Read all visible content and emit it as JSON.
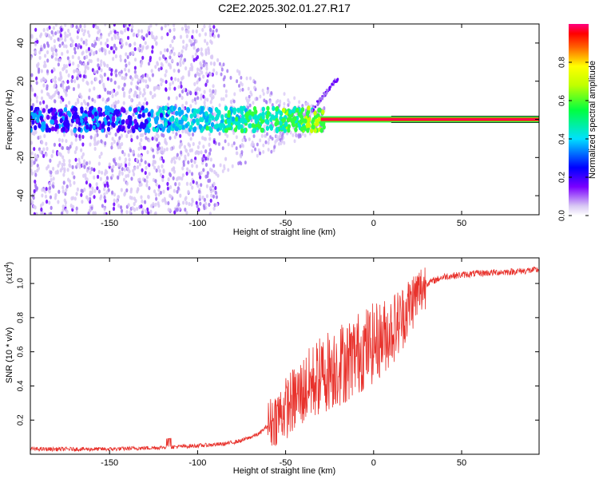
{
  "title": "C2E2.2025.302.01.27.R17",
  "chart_data": [
    {
      "type": "heatmap",
      "xlabel": "Height of straight line (km)",
      "ylabel": "Frequency (Hz)",
      "xlim": [
        -195,
        94
      ],
      "ylim": [
        -50,
        50
      ],
      "x_ticks": [
        -150,
        -100,
        -50,
        0,
        50
      ],
      "y_ticks": [
        -40,
        -20,
        0,
        20,
        40
      ],
      "colorbar": {
        "label": "Normalized spectral amplitude",
        "range": [
          0,
          1
        ],
        "ticks": [
          0.0,
          0.2,
          0.4,
          0.6,
          0.8
        ],
        "tick_labels": [
          "0.0",
          "0.2",
          "0.4",
          "0.6",
          "0.8"
        ],
        "colormap": [
          "#e8ddf8",
          "#6a00ff",
          "#0000ff",
          "#00e0ff",
          "#00ff40",
          "#c0ff00",
          "#ffff00",
          "#ff8000",
          "#ff0000",
          "#ff0080"
        ]
      },
      "description_note_free": true,
      "features": {
        "line_center_freq": 0,
        "strong_signal_from_x": -30,
        "strong_signal_to_x": 94,
        "drift_branch": [
          [
            -35,
            5
          ],
          [
            -20,
            22
          ]
        ],
        "noise_extent_x": [
          -195,
          -88
        ]
      }
    },
    {
      "type": "line",
      "xlabel": "Height of straight line (km)",
      "ylabel": "SNR (10 * v/v)",
      "multiplier_label": "(x10",
      "multiplier_exp": "4",
      "multiplier_close": ")",
      "xlim": [
        -195,
        94
      ],
      "ylim": [
        0,
        1.15
      ],
      "x_ticks": [
        -150,
        -100,
        -50,
        0,
        50
      ],
      "y_ticks": [
        0.2,
        0.4,
        0.6,
        0.8,
        1.0
      ],
      "y_tick_labels": [
        "0.2",
        "0.4",
        "0.6",
        "0.8",
        "1.0"
      ],
      "color": "#e8322c",
      "envelope": [
        {
          "x": -195,
          "y": 0.03
        },
        {
          "x": -150,
          "y": 0.03
        },
        {
          "x": -120,
          "y": 0.04
        },
        {
          "x": -100,
          "y": 0.05
        },
        {
          "x": -85,
          "y": 0.06
        },
        {
          "x": -75,
          "y": 0.08
        },
        {
          "x": -65,
          "y": 0.12
        },
        {
          "x": -55,
          "y": 0.22
        },
        {
          "x": -45,
          "y": 0.32
        },
        {
          "x": -35,
          "y": 0.42
        },
        {
          "x": -25,
          "y": 0.5
        },
        {
          "x": -15,
          "y": 0.55
        },
        {
          "x": -5,
          "y": 0.62
        },
        {
          "x": 5,
          "y": 0.68
        },
        {
          "x": 15,
          "y": 0.78
        },
        {
          "x": 22,
          "y": 0.9
        },
        {
          "x": 30,
          "y": 1.0
        },
        {
          "x": 40,
          "y": 1.04
        },
        {
          "x": 60,
          "y": 1.06
        },
        {
          "x": 80,
          "y": 1.07
        },
        {
          "x": 94,
          "y": 1.08
        }
      ]
    }
  ]
}
